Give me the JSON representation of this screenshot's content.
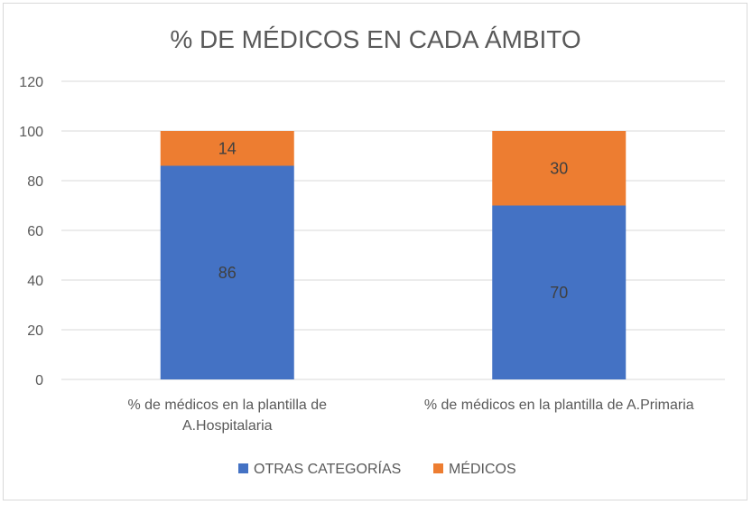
{
  "chart_data": {
    "type": "bar",
    "stacked": true,
    "title": "% DE MÉDICOS EN CADA ÁMBITO",
    "categories": [
      [
        "% de médicos en la plantilla de",
        "A.Hospitalaria"
      ],
      [
        "% de médicos en la plantilla de A.Primaria"
      ]
    ],
    "series": [
      {
        "name": "OTRAS CATEGORÍAS",
        "color": "#4472c4",
        "values": [
          86,
          70
        ]
      },
      {
        "name": "MÉDICOS",
        "color": "#ed7d31",
        "values": [
          14,
          30
        ]
      }
    ],
    "ylim": [
      0,
      120
    ],
    "yticks": [
      "0",
      "20",
      "40",
      "60",
      "80",
      "100",
      "120"
    ],
    "grid": true,
    "legend": "bottom"
  }
}
